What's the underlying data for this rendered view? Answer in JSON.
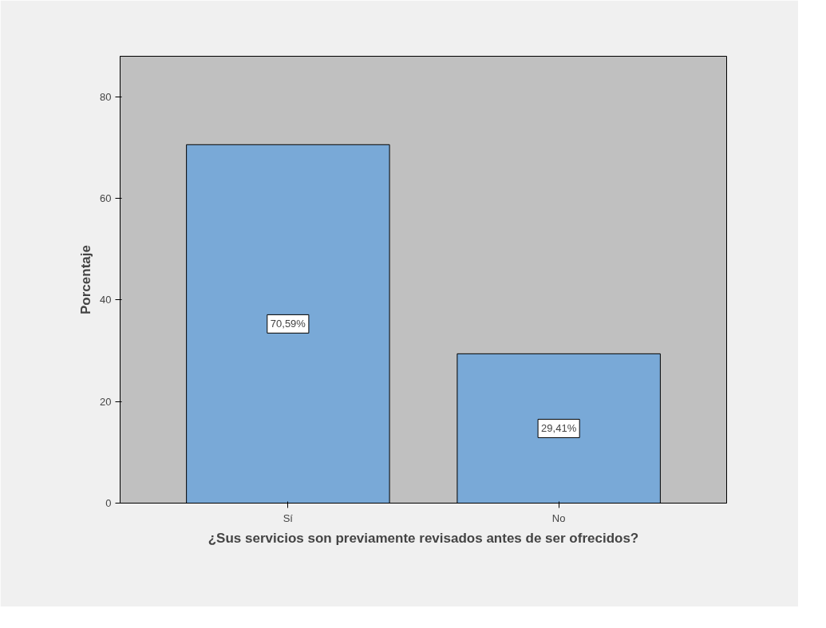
{
  "chart_data": {
    "type": "bar",
    "xlabel": "¿Sus servicios son previamente revisados antes de ser ofrecidos?",
    "ylabel": "Porcentaje",
    "categories": [
      "Sí",
      "No"
    ],
    "values": [
      70.59,
      29.41
    ],
    "value_labels": [
      "70,59%",
      "29,41%"
    ],
    "color": "#79a9d7",
    "ylim": [
      0,
      88
    ],
    "yticks": [
      0,
      20,
      40,
      60,
      80
    ],
    "grid": false
  }
}
